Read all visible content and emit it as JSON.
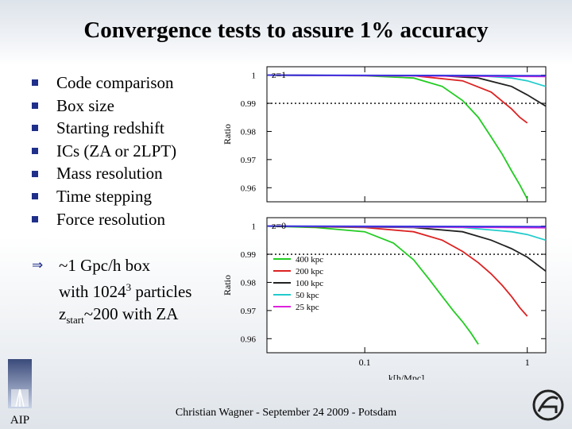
{
  "slide": {
    "title": "Convergence tests to assure 1% accuracy",
    "bullets": [
      "Code comparison",
      "Box size",
      "Starting redshift",
      "ICs (ZA or 2LPT)",
      "Mass resolution",
      "Time stepping",
      "Force resolution"
    ],
    "conclusion": {
      "line1": "~1 Gpc/h box",
      "line2_prefix": "with 1024",
      "line2_sup": "3",
      "line2_suffix": " particles",
      "line3_prefix": "z",
      "line3_sub": "start",
      "line3_suffix": "~200 with ZA"
    },
    "footer": "Christian Wagner - September 24 2009 - Potsdam",
    "logo_text": "AIP"
  },
  "chart_data": {
    "type": "line",
    "xlabel": "k[h/Mpc]",
    "ylabel": "Ratio",
    "x_scale": "log",
    "xlim": [
      0.025,
      1.3
    ],
    "x_ticks": [
      {
        "value": 0.1,
        "label": "0.1"
      },
      {
        "value": 1,
        "label": "1"
      }
    ],
    "reference_line": 0.99,
    "legend": [
      "400 kpc",
      "200 kpc",
      "100 kpc",
      "50 kpc",
      "25 kpc"
    ],
    "panels": [
      {
        "label": "z=1",
        "ylim": [
          0.955,
          1.003
        ],
        "y_ticks": [
          1,
          0.99,
          0.98,
          0.97,
          0.96
        ],
        "series": [
          {
            "name": "400 kpc",
            "color": "#22cc22",
            "points": [
              [
                0.025,
                1.0
              ],
              [
                0.1,
                0.9998
              ],
              [
                0.2,
                0.999
              ],
              [
                0.3,
                0.996
              ],
              [
                0.4,
                0.991
              ],
              [
                0.5,
                0.985
              ],
              [
                0.6,
                0.978
              ],
              [
                0.7,
                0.972
              ],
              [
                0.8,
                0.966
              ],
              [
                0.9,
                0.961
              ],
              [
                1.0,
                0.956
              ]
            ]
          },
          {
            "name": "200 kpc",
            "color": "#dd2222",
            "points": [
              [
                0.025,
                1.0
              ],
              [
                0.2,
                0.9998
              ],
              [
                0.4,
                0.998
              ],
              [
                0.6,
                0.994
              ],
              [
                0.8,
                0.988
              ],
              [
                0.9,
                0.985
              ],
              [
                1.0,
                0.983
              ]
            ]
          },
          {
            "name": "100 kpc",
            "color": "#222222",
            "points": [
              [
                0.025,
                1.0
              ],
              [
                0.3,
                0.9998
              ],
              [
                0.5,
                0.999
              ],
              [
                0.8,
                0.996
              ],
              [
                1.0,
                0.993
              ],
              [
                1.3,
                0.989
              ]
            ]
          },
          {
            "name": "50 kpc",
            "color": "#22cccc",
            "points": [
              [
                0.025,
                1.0
              ],
              [
                0.5,
                0.9998
              ],
              [
                0.8,
                0.999
              ],
              [
                1.0,
                0.998
              ],
              [
                1.3,
                0.996
              ]
            ]
          },
          {
            "name": "25 kpc",
            "color": "#dd22dd",
            "points": [
              [
                0.025,
                1.0
              ],
              [
                1.3,
                0.9995
              ]
            ]
          },
          {
            "name": "reference",
            "color": "#3333dd",
            "points": [
              [
                0.025,
                1.0
              ],
              [
                1.3,
                0.9998
              ]
            ]
          }
        ]
      },
      {
        "label": "z=0",
        "ylim": [
          0.955,
          1.003
        ],
        "y_ticks": [
          1,
          0.99,
          0.98,
          0.97,
          0.96
        ],
        "series": [
          {
            "name": "400 kpc",
            "color": "#22cc22",
            "points": [
              [
                0.025,
                1.0
              ],
              [
                0.05,
                0.9995
              ],
              [
                0.1,
                0.998
              ],
              [
                0.15,
                0.994
              ],
              [
                0.2,
                0.988
              ],
              [
                0.25,
                0.981
              ],
              [
                0.3,
                0.975
              ],
              [
                0.35,
                0.97
              ],
              [
                0.4,
                0.966
              ],
              [
                0.45,
                0.962
              ],
              [
                0.5,
                0.958
              ]
            ]
          },
          {
            "name": "200 kpc",
            "color": "#dd2222",
            "points": [
              [
                0.025,
                1.0
              ],
              [
                0.1,
                0.9995
              ],
              [
                0.2,
                0.998
              ],
              [
                0.3,
                0.995
              ],
              [
                0.4,
                0.991
              ],
              [
                0.5,
                0.987
              ],
              [
                0.6,
                0.983
              ],
              [
                0.7,
                0.979
              ],
              [
                0.8,
                0.975
              ],
              [
                0.9,
                0.971
              ],
              [
                1.0,
                0.968
              ]
            ]
          },
          {
            "name": "100 kpc",
            "color": "#222222",
            "points": [
              [
                0.025,
                1.0
              ],
              [
                0.2,
                0.9995
              ],
              [
                0.4,
                0.998
              ],
              [
                0.6,
                0.995
              ],
              [
                0.8,
                0.992
              ],
              [
                1.0,
                0.989
              ],
              [
                1.3,
                0.984
              ]
            ]
          },
          {
            "name": "50 kpc",
            "color": "#22cccc",
            "points": [
              [
                0.025,
                1.0
              ],
              [
                0.4,
                0.9995
              ],
              [
                0.8,
                0.998
              ],
              [
                1.0,
                0.997
              ],
              [
                1.3,
                0.995
              ]
            ]
          },
          {
            "name": "25 kpc",
            "color": "#dd22dd",
            "points": [
              [
                0.025,
                1.0
              ],
              [
                1.3,
                0.9994
              ]
            ]
          },
          {
            "name": "reference",
            "color": "#3333dd",
            "points": [
              [
                0.025,
                1.0
              ],
              [
                1.3,
                0.9998
              ]
            ]
          }
        ]
      }
    ]
  }
}
